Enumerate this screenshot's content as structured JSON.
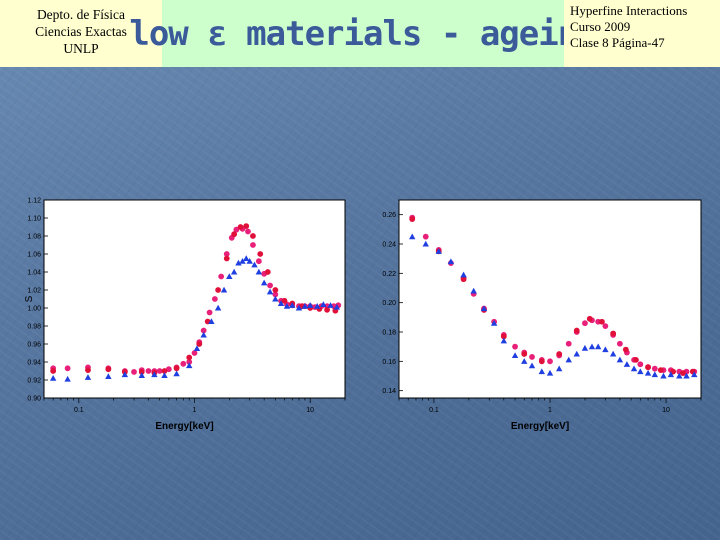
{
  "header": {
    "left_lines": [
      "Depto. de Física",
      "Ciencias Exactas",
      "UNLP"
    ],
    "title": "low ε materials - ageing",
    "right_lines": [
      "Hyperfine Interactions",
      "Curso 2009",
      "Clase 8  Página-47"
    ]
  },
  "colors": {
    "series_pink": "#e8207a",
    "series_red": "#e0103a",
    "series_blue": "#1f3fe0"
  },
  "chart_data": [
    {
      "type": "scatter",
      "xscale": "log",
      "xlabel": "Energy[keV]",
      "ylabel": "S",
      "xlim": [
        0.05,
        20
      ],
      "ylim": [
        0.9,
        1.12
      ],
      "xticks": [
        "0.1",
        "1",
        "10"
      ],
      "xtick_values": [
        0.1,
        1,
        10
      ],
      "yticks": [
        "0.90",
        "0.92",
        "0.94",
        "0.96",
        "0.98",
        "1.00",
        "1.02",
        "1.04",
        "1.06",
        "1.08",
        "1.10",
        "1.12"
      ],
      "ytick_values": [
        0.9,
        0.92,
        0.94,
        0.96,
        0.98,
        1.0,
        1.02,
        1.04,
        1.06,
        1.08,
        1.1,
        1.12
      ],
      "series": [
        {
          "color": "#e8207a",
          "marker": "circle",
          "x": [
            0.06,
            0.08,
            0.12,
            0.18,
            0.25,
            0.3,
            0.35,
            0.4,
            0.45,
            0.5,
            0.6,
            0.7,
            0.8,
            0.9,
            1.0,
            1.1,
            1.2,
            1.35,
            1.5,
            1.7,
            1.9,
            2.1,
            2.3,
            2.6,
            2.9,
            3.2,
            3.6,
            4.0,
            4.5,
            5.0,
            5.6,
            6.3,
            7.0,
            8.0,
            9.0,
            10.0,
            11.0,
            12.5,
            14.0,
            16.0,
            17.5
          ],
          "y": [
            0.933,
            0.933,
            0.934,
            0.933,
            0.93,
            0.929,
            0.931,
            0.93,
            0.93,
            0.93,
            0.932,
            0.934,
            0.938,
            0.94,
            0.95,
            0.962,
            0.975,
            0.995,
            1.01,
            1.035,
            1.06,
            1.078,
            1.087,
            1.088,
            1.085,
            1.07,
            1.052,
            1.038,
            1.025,
            1.015,
            1.008,
            1.004,
            1.003,
            1.002,
            1.002,
            1.002,
            1.001,
            1.002,
            1.002,
            1.002,
            1.003
          ]
        },
        {
          "color": "#e0103a",
          "marker": "circle",
          "x": [
            0.06,
            0.12,
            0.18,
            0.25,
            0.35,
            0.45,
            0.55,
            0.7,
            0.9,
            1.1,
            1.3,
            1.6,
            1.9,
            2.2,
            2.5,
            2.8,
            3.2,
            3.7,
            4.3,
            5.0,
            6.0,
            7.0,
            8.5,
            10.0,
            12.0,
            14.0,
            16.5
          ],
          "y": [
            0.93,
            0.931,
            0.932,
            0.929,
            0.929,
            0.928,
            0.93,
            0.933,
            0.945,
            0.96,
            0.985,
            1.02,
            1.055,
            1.082,
            1.09,
            1.091,
            1.08,
            1.06,
            1.04,
            1.02,
            1.008,
            1.005,
            1.002,
            1.0,
            0.999,
            0.998,
            0.997
          ]
        },
        {
          "color": "#1f3fe0",
          "marker": "triangle",
          "x": [
            0.06,
            0.08,
            0.12,
            0.18,
            0.25,
            0.35,
            0.45,
            0.55,
            0.7,
            0.9,
            1.05,
            1.2,
            1.4,
            1.6,
            1.8,
            2.0,
            2.2,
            2.4,
            2.6,
            2.8,
            3.0,
            3.3,
            3.6,
            4.0,
            4.5,
            5.0,
            5.6,
            6.3,
            7.0,
            8.0,
            9.0,
            10.0,
            11.5,
            13.0,
            15.0,
            17.0
          ],
          "y": [
            0.922,
            0.921,
            0.923,
            0.924,
            0.926,
            0.925,
            0.926,
            0.925,
            0.927,
            0.936,
            0.955,
            0.97,
            0.985,
            1.0,
            1.02,
            1.035,
            1.04,
            1.05,
            1.052,
            1.055,
            1.052,
            1.048,
            1.04,
            1.028,
            1.018,
            1.01,
            1.005,
            1.002,
            1.003,
            1.0,
            1.002,
            1.003,
            1.002,
            1.004,
            1.003,
            1.001
          ]
        }
      ]
    },
    {
      "type": "scatter",
      "xscale": "log",
      "xlabel": "Energy[keV]",
      "ylabel": "",
      "xlim": [
        0.05,
        20
      ],
      "ylim": [
        0.135,
        0.27
      ],
      "xticks": [
        "0.1",
        "1",
        "10"
      ],
      "xtick_values": [
        0.1,
        1,
        10
      ],
      "yticks": [
        "0.14",
        "0.16",
        "0.18",
        "0.20",
        "0.22",
        "0.24",
        "0.26",
        "0.28"
      ],
      "ytick_values": [
        0.14,
        0.16,
        0.18,
        0.2,
        0.22,
        0.24,
        0.26,
        0.28
      ],
      "series": [
        {
          "color": "#e8207a",
          "marker": "circle",
          "x": [
            0.065,
            0.085,
            0.11,
            0.14,
            0.18,
            0.22,
            0.27,
            0.33,
            0.4,
            0.5,
            0.6,
            0.7,
            0.85,
            1.0,
            1.2,
            1.45,
            1.7,
            2.0,
            2.3,
            2.6,
            3.0,
            3.5,
            4.0,
            4.6,
            5.3,
            6.0,
            7.0,
            8.0,
            9.5,
            11.0,
            13.0,
            15.0,
            17.5
          ],
          "y": [
            0.258,
            0.245,
            0.236,
            0.227,
            0.217,
            0.206,
            0.196,
            0.187,
            0.178,
            0.17,
            0.166,
            0.163,
            0.161,
            0.16,
            0.164,
            0.172,
            0.18,
            0.186,
            0.188,
            0.187,
            0.184,
            0.178,
            0.172,
            0.166,
            0.161,
            0.158,
            0.156,
            0.155,
            0.154,
            0.154,
            0.153,
            0.153,
            0.153
          ]
        },
        {
          "color": "#e0103a",
          "marker": "circle",
          "x": [
            0.065,
            0.11,
            0.18,
            0.27,
            0.4,
            0.6,
            0.85,
            1.2,
            1.7,
            2.2,
            2.8,
            3.5,
            4.5,
            5.5,
            7.0,
            9.0,
            11.5,
            14.0,
            17.0
          ],
          "y": [
            0.257,
            0.235,
            0.216,
            0.195,
            0.177,
            0.165,
            0.16,
            0.165,
            0.181,
            0.189,
            0.187,
            0.179,
            0.168,
            0.161,
            0.156,
            0.154,
            0.153,
            0.152,
            0.153
          ]
        },
        {
          "color": "#1f3fe0",
          "marker": "triangle",
          "x": [
            0.065,
            0.085,
            0.11,
            0.14,
            0.18,
            0.22,
            0.27,
            0.33,
            0.4,
            0.5,
            0.6,
            0.7,
            0.85,
            1.0,
            1.2,
            1.45,
            1.7,
            2.0,
            2.3,
            2.6,
            3.0,
            3.5,
            4.0,
            4.6,
            5.3,
            6.0,
            7.0,
            8.0,
            9.5,
            11.0,
            13.0,
            15.0,
            17.5
          ],
          "y": [
            0.245,
            0.24,
            0.235,
            0.228,
            0.219,
            0.208,
            0.196,
            0.186,
            0.174,
            0.164,
            0.16,
            0.157,
            0.153,
            0.152,
            0.155,
            0.161,
            0.165,
            0.169,
            0.17,
            0.17,
            0.168,
            0.165,
            0.161,
            0.158,
            0.155,
            0.153,
            0.152,
            0.151,
            0.15,
            0.151,
            0.15,
            0.15,
            0.151
          ]
        }
      ]
    }
  ]
}
